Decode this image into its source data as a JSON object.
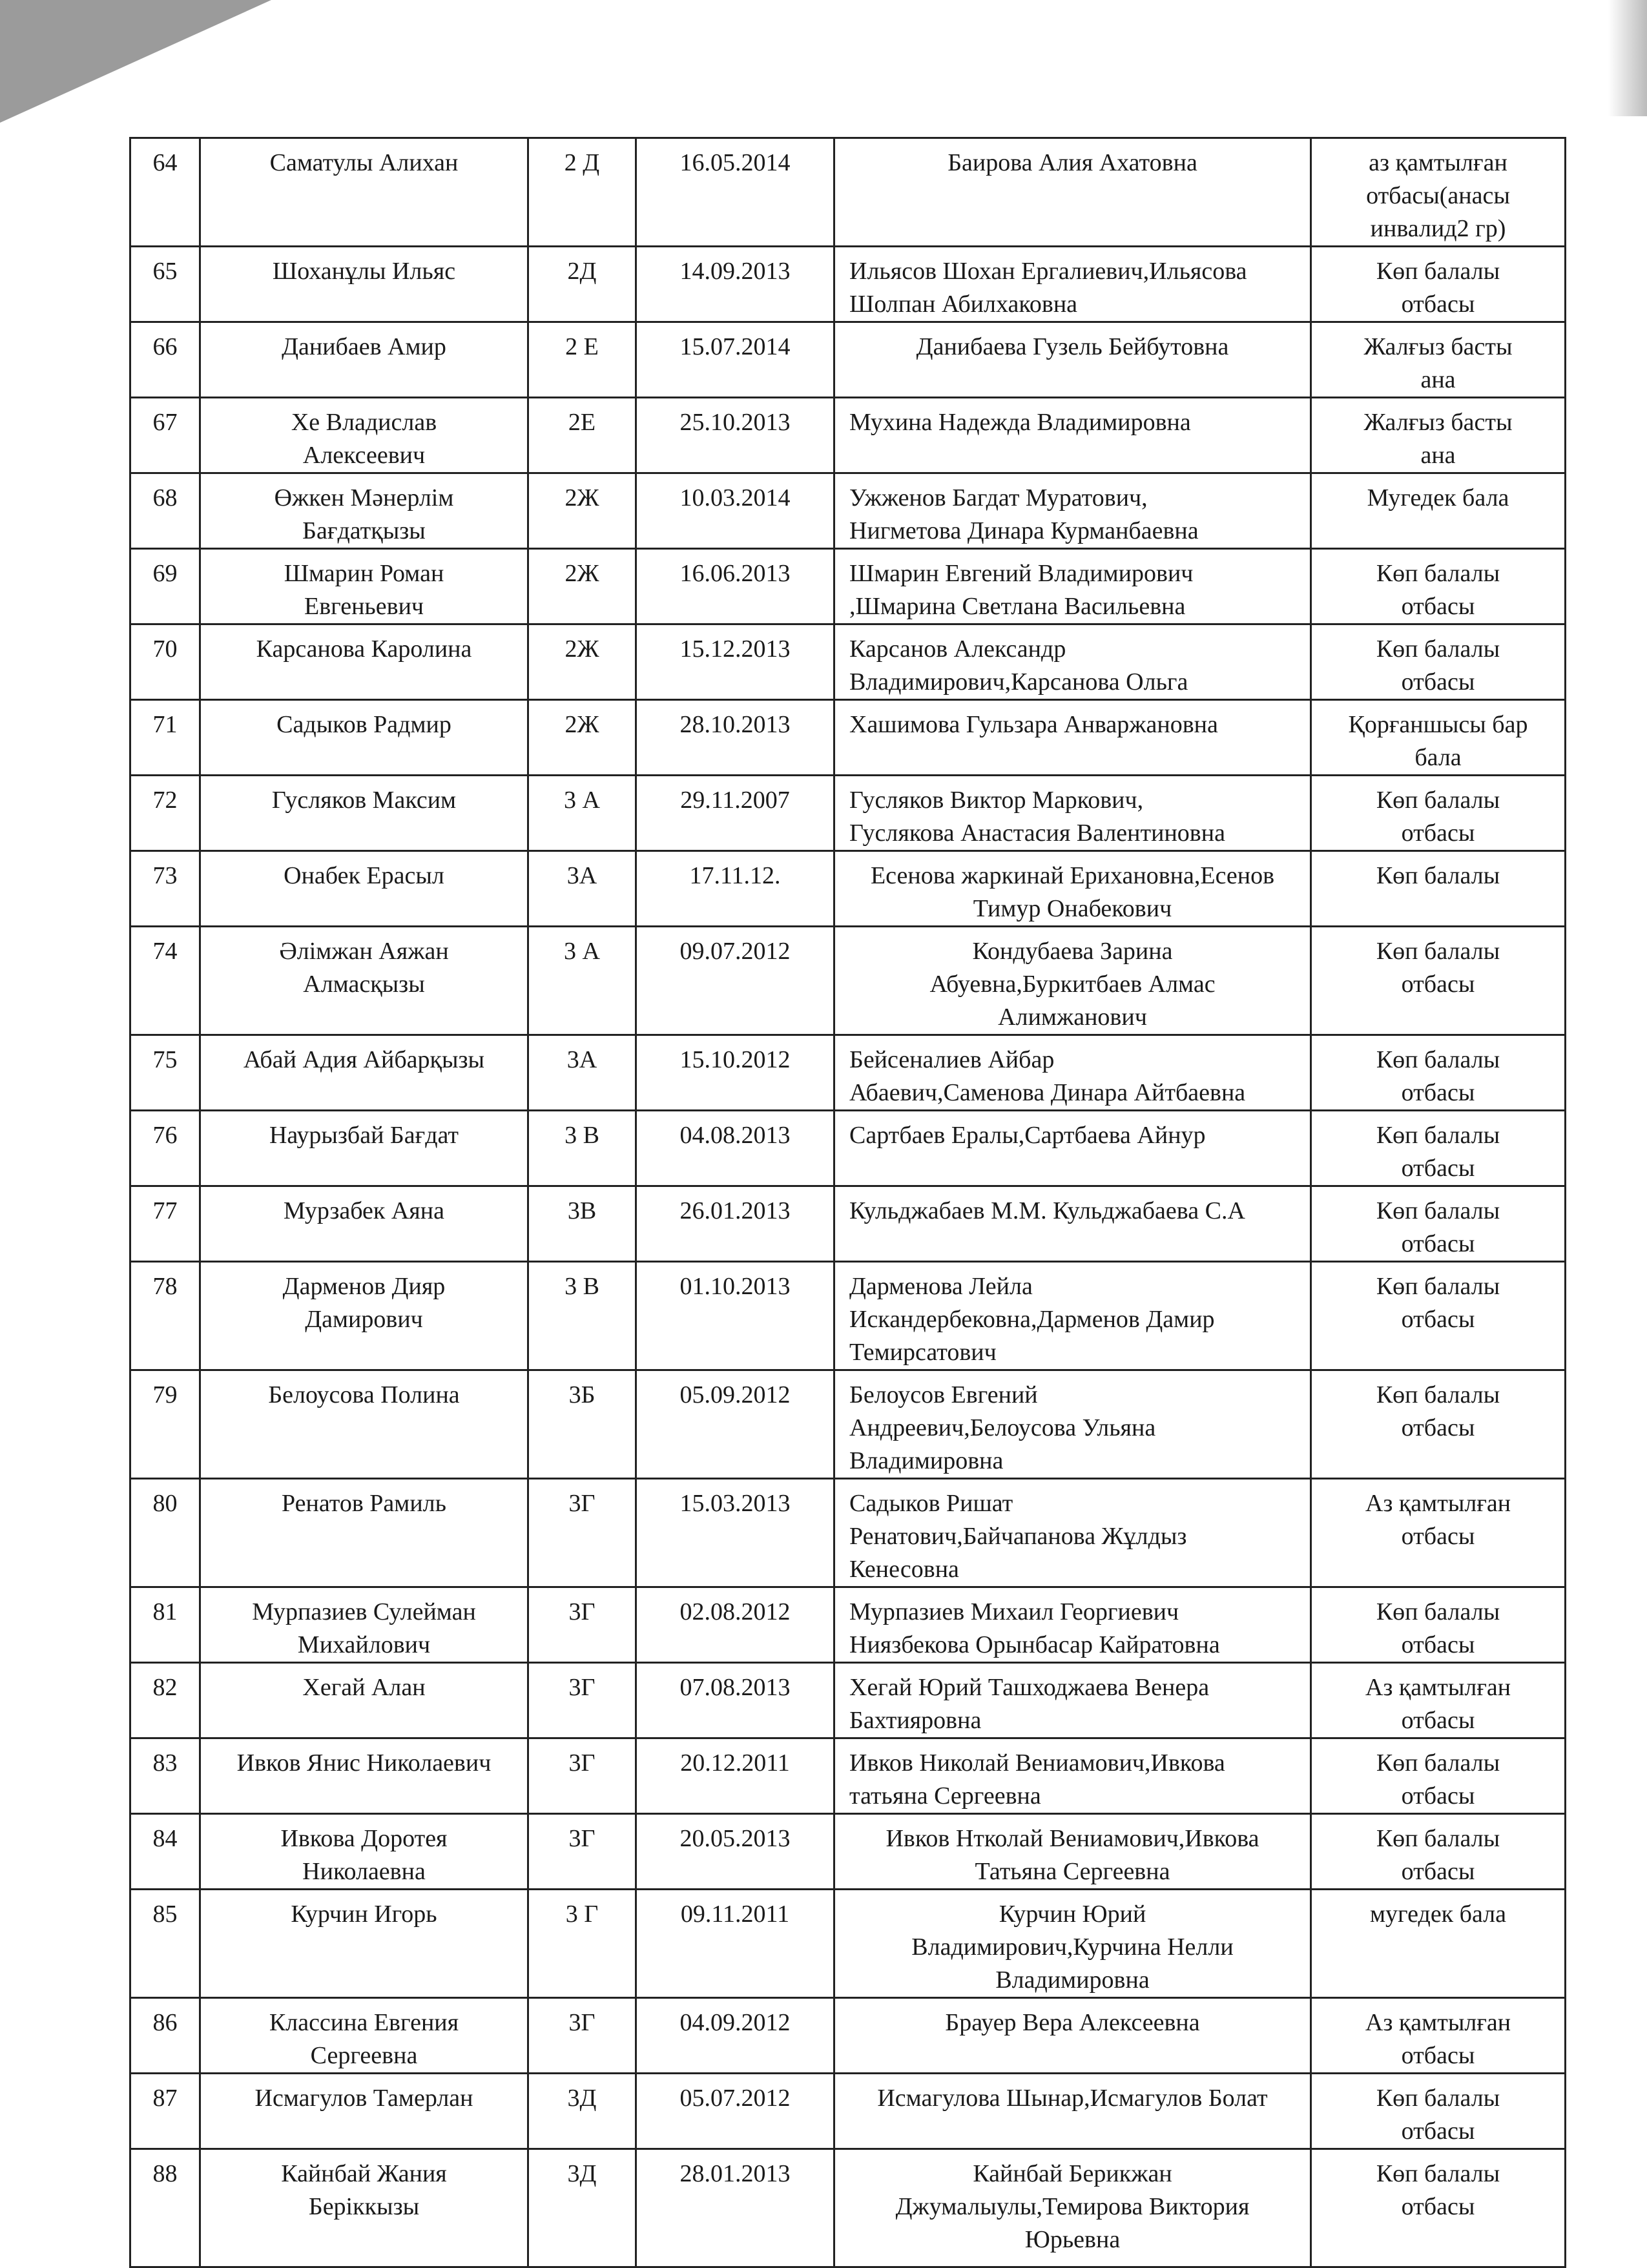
{
  "rows": [
    {
      "no": "64",
      "name": "Саматулы Алихан",
      "class": "2 Д",
      "dob": "16.05.2014",
      "parents": "Баирова Алия Ахатовна",
      "status": "аз қамтылған\nотбасы(анасы\nинвалид2 гр)"
    },
    {
      "no": "65",
      "name": "Шоханұлы Ильяс",
      "class": "2Д",
      "dob": "14.09.2013",
      "parents": "Ильясов Шохан Ергалиевич,Ильясова\nШолпан Абилхаковна",
      "status": "Көп балалы\nотбасы"
    },
    {
      "no": "66",
      "name": "Данибаев Амир",
      "class": "2 Е",
      "dob": "15.07.2014",
      "parents": "Данибаева Гузель Бейбутовна",
      "status": "Жалғыз басты\nана"
    },
    {
      "no": "67",
      "name": "Хе Владислав\nАлексеевич",
      "class": "2Е",
      "dob": "25.10.2013",
      "parents": "Мухина Надежда Владимировна",
      "status": "Жалғыз басты\nана"
    },
    {
      "no": "68",
      "name": "Өжкен Мәнерлім\nБағдатқызы",
      "class": "2Ж",
      "dob": "10.03.2014",
      "parents": "Ужженов Багдат Муратович,\nНигметова Динара Курманбаевна",
      "status": "Мугедек  бала"
    },
    {
      "no": "69",
      "name": "Шмарин Роман\nЕвгеньевич",
      "class": "2Ж",
      "dob": "16.06.2013",
      "parents": "Шмарин Евгений Владимирович\n,Шмарина  Светлана Васильевна",
      "status": "Көп балалы\nотбасы"
    },
    {
      "no": "70",
      "name": "Карсанова Каролина",
      "class": "2Ж",
      "dob": "15.12.2013",
      "parents": "Карсанов Александр\nВладимирович,Карсанова Ольга",
      "status": "Көп балалы\nотбасы"
    },
    {
      "no": "71",
      "name": "Садыков Радмир",
      "class": "2Ж",
      "dob": "28.10.2013",
      "parents": "Хашимова Гульзара Анваржановна",
      "status": "Қорғаншысы бар\nбала"
    },
    {
      "no": "72",
      "name": "Гусляков Максим",
      "class": "3 А",
      "dob": "29.11.2007",
      "parents": "Гусляков Виктор Маркович,\nГуслякова Анастасия Валентиновна",
      "status": "Көп балалы\nотбасы"
    },
    {
      "no": "73",
      "name": "Онабек Ерасыл",
      "class": "3А",
      "dob": "17.11.12.",
      "parents": "Есенова жаркинай Ерихановна,Есенов\nТимур Онабекович",
      "status": "Көп балалы"
    },
    {
      "no": "74",
      "name": "Әлімжан Аяжан\nАлмасқызы",
      "class": "3 А",
      "dob": "09.07.2012",
      "parents": "Кондубаева Зарина\nАбуевна,Буркитбаев Алмас\nАлимжанович",
      "status": "Көп балалы\nотбасы"
    },
    {
      "no": "75",
      "name": "Абай Адия Айбарқызы",
      "class": "3А",
      "dob": "15.10.2012",
      "parents": "Бейсеналиев Айбар\nАбаевич,Саменова Динара Айтбаевна",
      "status": "Көп балалы\nотбасы"
    },
    {
      "no": "76",
      "name": "Наурызбай Бағдат",
      "class": "3 В",
      "dob": "04.08.2013",
      "parents": "Сартбаев Ералы,Сартбаева Айнур",
      "status": "Көп балалы\nотбасы"
    },
    {
      "no": "77",
      "name": "Мурзабек Аяна",
      "class": "3В",
      "dob": "26.01.2013",
      "parents": "Кульджабаев М.М. Кульджабаева С.А",
      "status": "Көп балалы\nотбасы"
    },
    {
      "no": "78",
      "name": "Дарменов  Дияр\nДамирович",
      "class": "3 В",
      "dob": "01.10.2013",
      "parents": "Дарменова Лейла\nИскандербековна,Дарменов Дамир\nТемирсатович",
      "status": "Көп балалы\nотбасы"
    },
    {
      "no": "79",
      "name": "Белоусова Полина",
      "class": "3Б",
      "dob": "05.09.2012",
      "parents": "Белоусов Евгений\nАндреевич,Белоусова Ульяна\nВладимировна",
      "status": "Көп балалы\nотбасы"
    },
    {
      "no": "80",
      "name": "Ренатов Рамиль",
      "class": "3Г",
      "dob": "15.03.2013",
      "parents": "Садыков Ришат\nРенатович,Байчапанова Жұлдыз\nКенесовна",
      "status": "Аз қамтылған\nотбасы"
    },
    {
      "no": "81",
      "name": "Мурпазиев Сулейман\nМихайлович",
      "class": "3Г",
      "dob": "02.08.2012",
      "parents": "Мурпазиев Михаил Георгиевич\nНиязбекова Орынбасар Кайратовна",
      "status": "Көп балалы\nотбасы"
    },
    {
      "no": "82",
      "name": "Хегай Алан",
      "class": "3Г",
      "dob": "07.08.2013",
      "parents": "Хегай Юрий  Ташходжаева Венера\nБахтияровна",
      "status": "Аз қамтылған\nотбасы"
    },
    {
      "no": "83",
      "name": "Ивков Янис Николаевич",
      "class": "3Г",
      "dob": "20.12.2011",
      "parents": "Ивков Николай Вениамович,Ивкова\nтатьяна Сергеевна",
      "status": "Көп балалы\nотбасы"
    },
    {
      "no": "84",
      "name": "Ивкова Доротея\nНиколаевна",
      "class": "3Г",
      "dob": "20.05.2013",
      "parents": "Ивков Нтколай Вениамович,Ивкова\nТатьяна Сергеевна",
      "status": "Көп балалы\nотбасы"
    },
    {
      "no": "85",
      "name": "Курчин Игорь",
      "class": "3 Г",
      "dob": "09.11.2011",
      "parents": "Курчин Юрий\nВладимирович,Курчина Нелли\nВладимировна",
      "status": "мугедек бала"
    },
    {
      "no": "86",
      "name": "Классина Евгения\nСергеевна",
      "class": "3Г",
      "dob": "04.09.2012",
      "parents": "Брауер Вера Алексеевна",
      "status": "Аз қамтылған\nотбасы"
    },
    {
      "no": "87",
      "name": "Исмагулов Тамерлан",
      "class": "3Д",
      "dob": "05.07.2012",
      "parents": "Исмагулова Шынар,Исмагулов Болат",
      "status": "Көп балалы\nотбасы"
    },
    {
      "no": "88",
      "name": "Кайнбай Жания\nБеріккызы",
      "class": "3Д",
      "dob": "28.01.2013",
      "parents": "Кайнбай Берикжан\nДжумалыулы,Темирова Виктория\nЮрьевна",
      "status": "Көп балалы\nотбасы"
    }
  ]
}
